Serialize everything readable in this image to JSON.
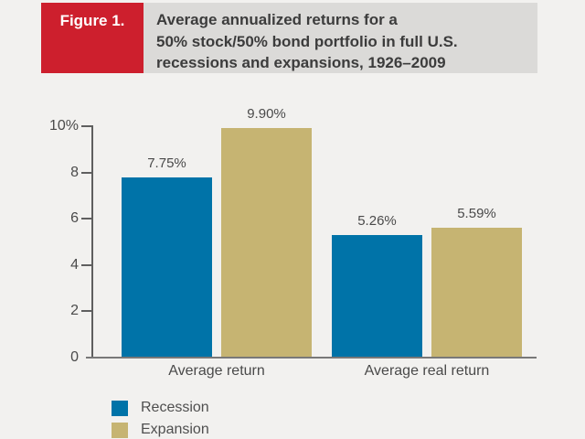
{
  "header": {
    "figure_label": "Figure 1.",
    "title_lines": [
      "Average annualized returns for a",
      "50% stock/50% bond portfolio in full U.S.",
      "recessions and expansions, 1926–2009"
    ],
    "label_box_color": "#cd1f2d",
    "title_box_color": "#dbdad8"
  },
  "chart_data": {
    "type": "bar",
    "title": "Average annualized returns for a 50% stock/50% bond portfolio in full U.S. recessions and expansions, 1926–2009",
    "categories": [
      "Average return",
      "Average real return"
    ],
    "series": [
      {
        "name": "Recession",
        "color": "#0073a8",
        "values": [
          7.75,
          5.26
        ],
        "labels": [
          "7.75%",
          "5.26%"
        ]
      },
      {
        "name": "Expansion",
        "color": "#c6b472",
        "values": [
          9.9,
          5.59
        ],
        "labels": [
          "9.90%",
          "5.59%"
        ]
      }
    ],
    "ylim": [
      0,
      10
    ],
    "yticks": {
      "values": [
        0,
        2,
        4,
        6,
        8,
        10
      ],
      "labels": [
        "0",
        "2",
        "4",
        "6",
        "8",
        "10%"
      ]
    },
    "grid": false,
    "legend_position": "bottom-left"
  }
}
